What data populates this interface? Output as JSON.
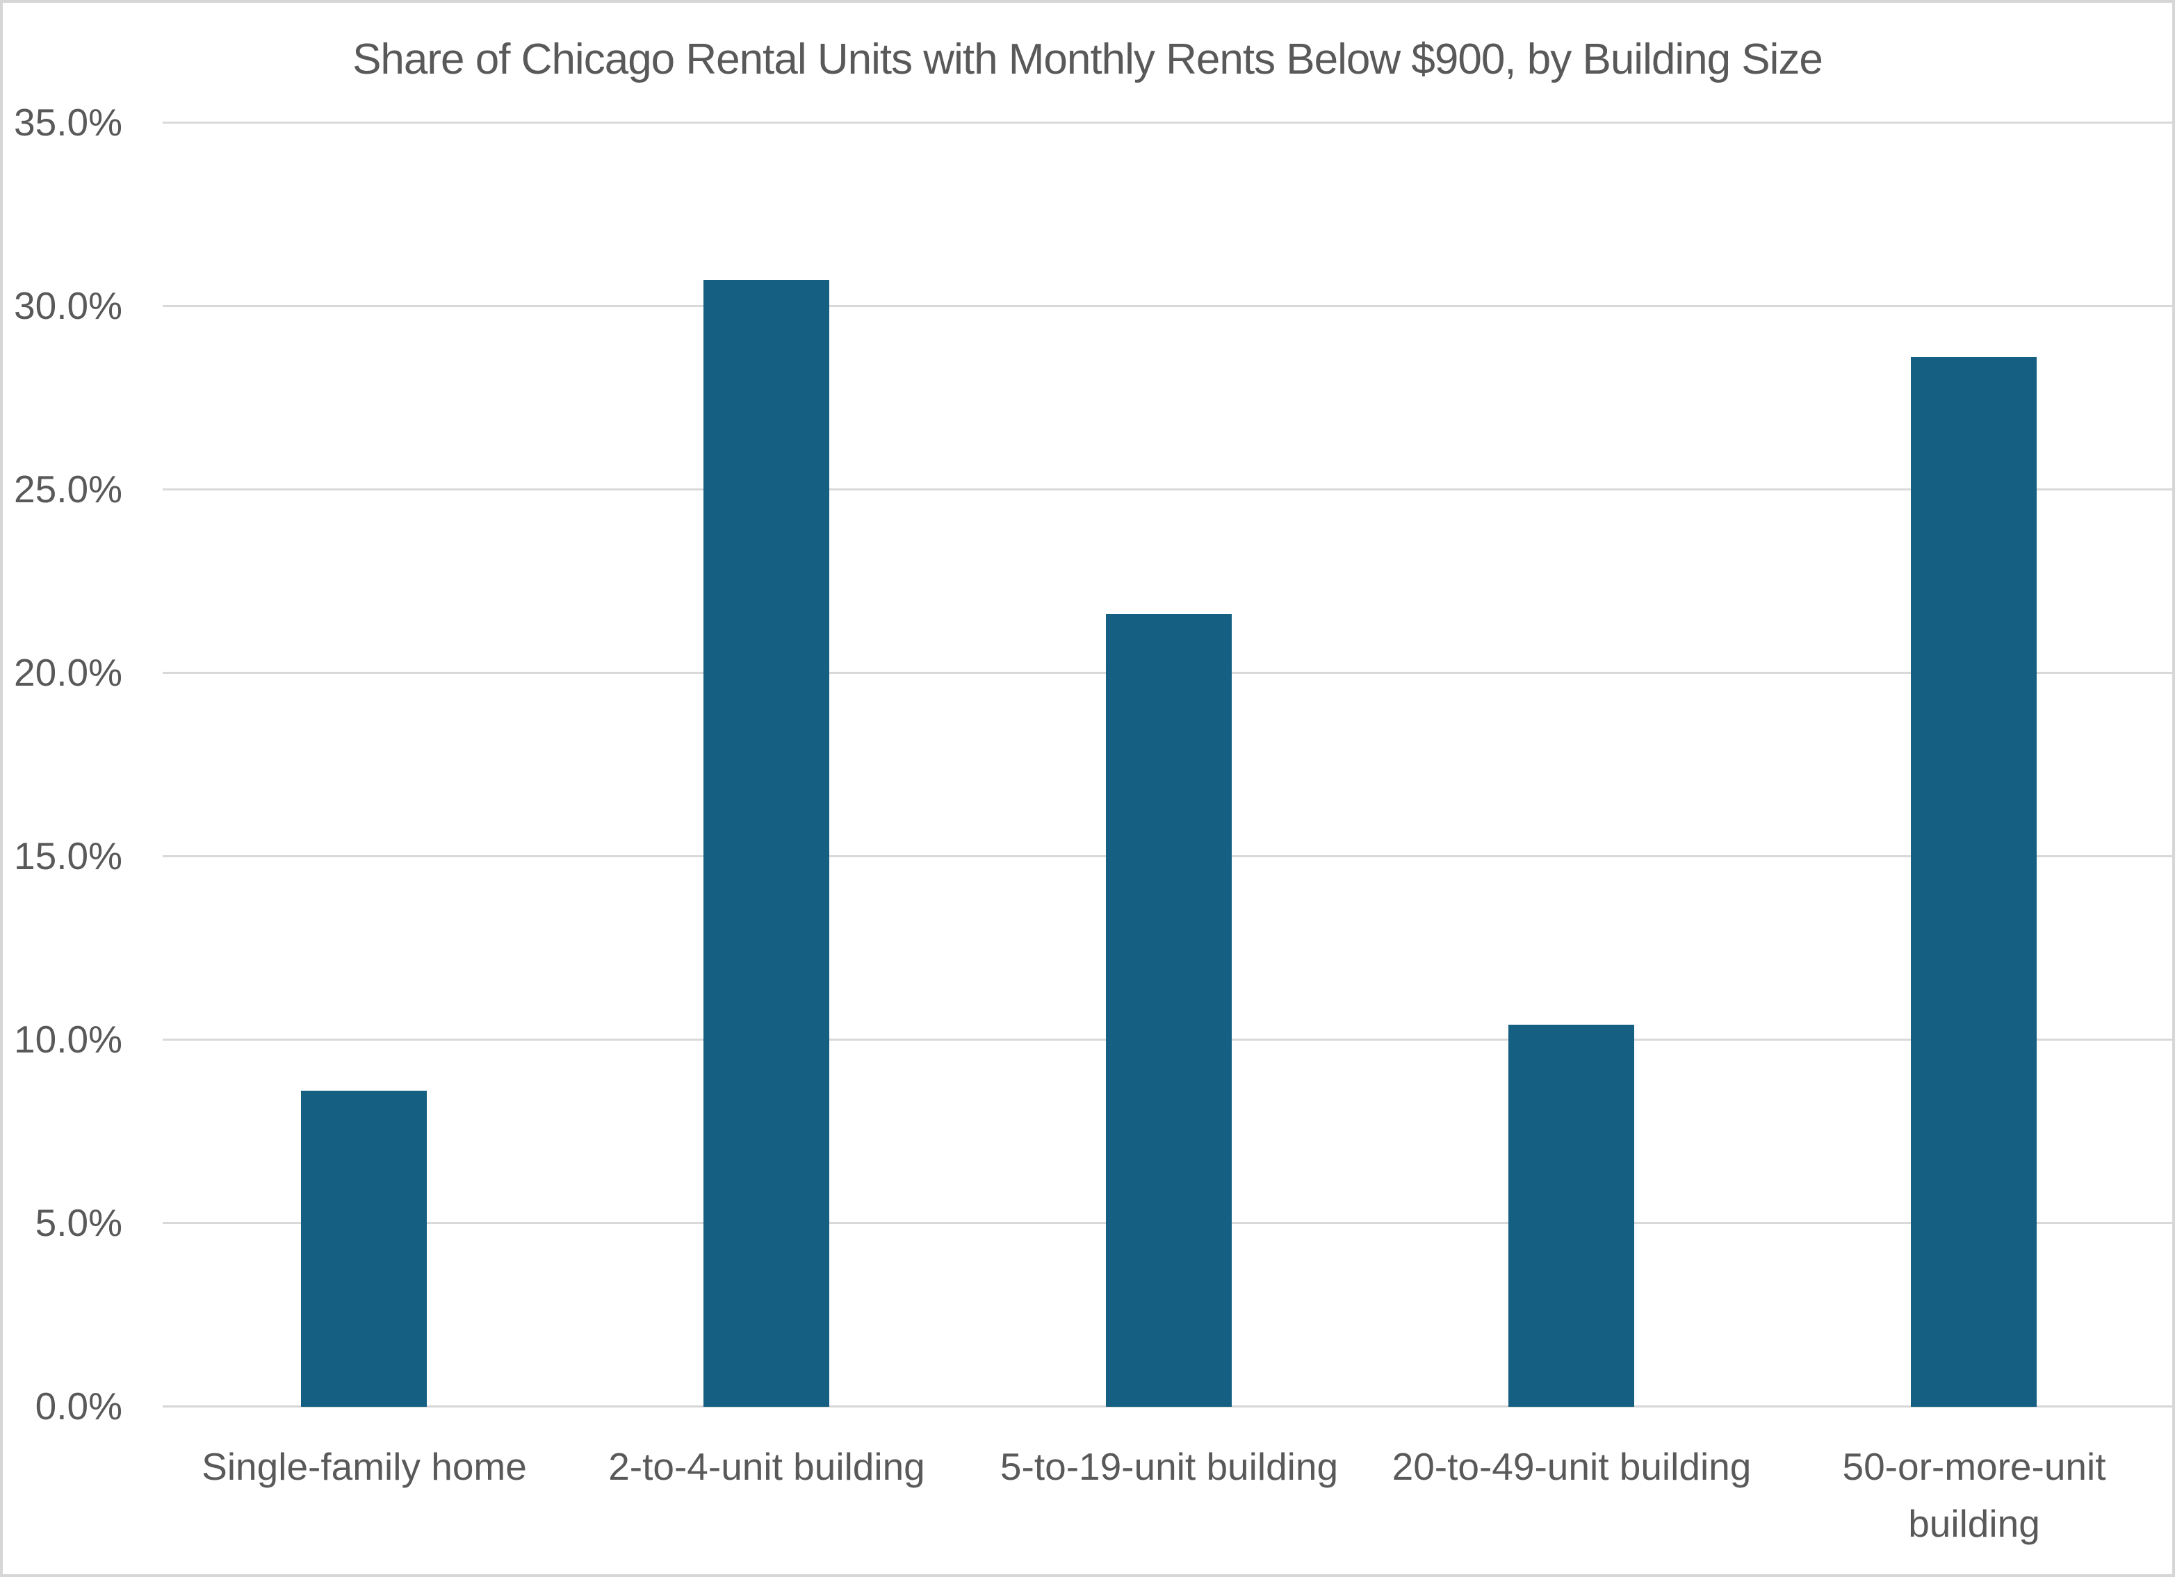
{
  "chart_data": {
    "type": "bar",
    "title": "Share of Chicago Rental Units with Monthly Rents Below $900, by Building Size",
    "categories": [
      "Single-family home",
      "2-to-4-unit building",
      "5-to-19-unit building",
      "20-to-49-unit building",
      "50-or-more-unit building"
    ],
    "values": [
      8.6,
      30.7,
      21.6,
      10.4,
      28.6
    ],
    "value_unit": "percent",
    "xlabel": "",
    "ylabel": "",
    "y_axis": {
      "min": 0,
      "max": 35,
      "step": 5,
      "ticks": [
        {
          "value": 35,
          "label": "35.0%"
        },
        {
          "value": 30,
          "label": "30.0%"
        },
        {
          "value": 25,
          "label": "25.0%"
        },
        {
          "value": 20,
          "label": "20.0%"
        },
        {
          "value": 15,
          "label": "15.0%"
        },
        {
          "value": 10,
          "label": "10.0%"
        },
        {
          "value": 5,
          "label": "5.0%"
        },
        {
          "value": 0,
          "label": "0.0%"
        }
      ]
    },
    "grid": true,
    "legend": false,
    "colors": {
      "bar_fill": "#156082",
      "gridline": "#d9d9d9",
      "axis_line": "#d6d6d6",
      "text": "#595959",
      "background": "#ffffff",
      "frame_border": "#d6d6d6"
    }
  }
}
